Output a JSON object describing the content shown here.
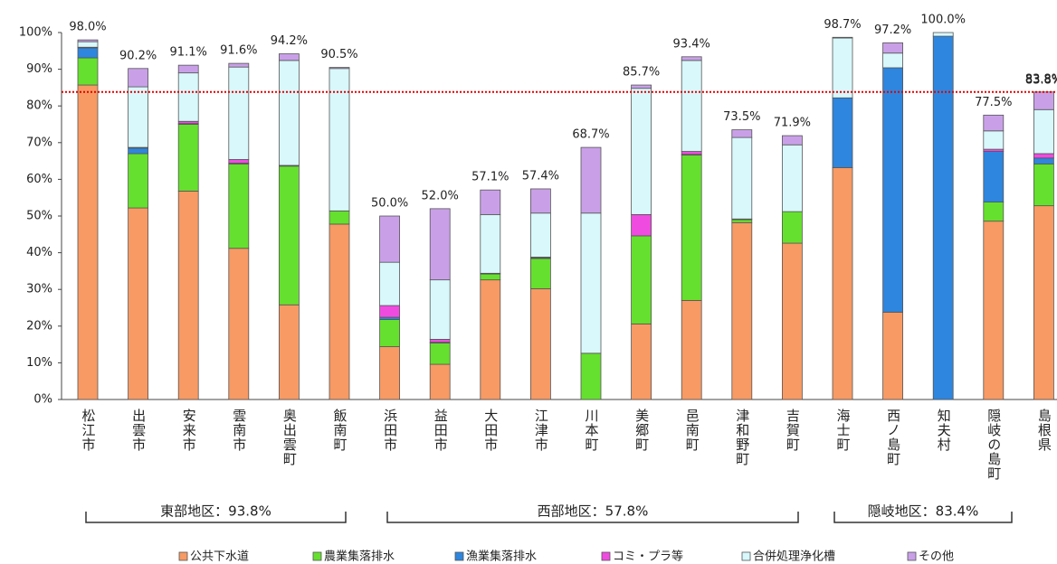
{
  "chart_data": {
    "type": "stacked_bar",
    "categories": [
      "松江市",
      "出雲市",
      "安来市",
      "雲南市",
      "奥出雲町",
      "飯南町",
      "浜田市",
      "益田市",
      "大田市",
      "江津市",
      "川本町",
      "美郷町",
      "邑南町",
      "津和野町",
      "吉賀町",
      "海士町",
      "西ノ島町",
      "知夫村",
      "隠岐の島町",
      "島根県"
    ],
    "series": [
      {
        "name": "公共下水道",
        "color": "#f79a64",
        "values": [
          85.7,
          52.2,
          56.8,
          41.2,
          25.8,
          47.8,
          14.4,
          9.6,
          32.6,
          30.2,
          0,
          20.6,
          27.0,
          48.2,
          42.6,
          63.2,
          23.8,
          0,
          48.6,
          52.8
        ]
      },
      {
        "name": "農業集落排水",
        "color": "#66e02e",
        "values": [
          7.4,
          14.8,
          18.2,
          23.0,
          37.8,
          3.6,
          7.4,
          5.8,
          1.6,
          8.2,
          12.6,
          24.0,
          39.6,
          0.8,
          8.6,
          0,
          0,
          0,
          5.2,
          11.4
        ]
      },
      {
        "name": "漁業集落排水",
        "color": "#2e86de",
        "values": [
          2.7,
          1.5,
          0.2,
          0.2,
          0,
          0,
          0.6,
          0.2,
          0,
          0.2,
          0,
          0,
          0.2,
          0,
          0,
          19.0,
          66.6,
          99.0,
          13.8,
          1.6
        ]
      },
      {
        "name": "コミ・プラ等",
        "color": "#f04be0",
        "values": [
          0.2,
          0.2,
          0.6,
          1.0,
          0.2,
          0,
          3.2,
          0.8,
          0.2,
          0.2,
          0,
          5.8,
          0.8,
          0.2,
          0,
          0,
          0,
          0,
          0.6,
          1.2
        ]
      },
      {
        "name": "合併処理浄化槽",
        "color": "#d8f8fc",
        "values": [
          1.5,
          16.5,
          13.2,
          25.2,
          28.6,
          38.8,
          11.8,
          16.2,
          16.0,
          12.0,
          38.2,
          34.4,
          24.8,
          22.2,
          18.2,
          16.3,
          4.0,
          1.0,
          5.0,
          12.0
        ]
      },
      {
        "name": "その他",
        "color": "#c9a0e8",
        "values": [
          0.5,
          5.0,
          2.1,
          1.0,
          1.8,
          0.3,
          12.6,
          19.4,
          6.7,
          6.6,
          17.9,
          0.9,
          1.0,
          2.1,
          2.5,
          0.2,
          2.8,
          0,
          4.3,
          4.8
        ]
      }
    ],
    "totals": [
      98.0,
      90.2,
      91.1,
      91.6,
      94.2,
      90.5,
      50.0,
      52.0,
      57.1,
      57.4,
      68.7,
      85.7,
      93.4,
      73.5,
      71.9,
      98.7,
      97.2,
      100.0,
      77.5,
      83.8
    ],
    "total_labels": [
      "98.0%",
      "90.2%",
      "91.1%",
      "91.6%",
      "94.2%",
      "90.5%",
      "50.0%",
      "52.0%",
      "57.1%",
      "57.4%",
      "68.7%",
      "85.7%",
      "93.4%",
      "73.5%",
      "71.9%",
      "98.7%",
      "97.2%",
      "100.0%",
      "77.5%",
      "83.8%"
    ],
    "reference_line": {
      "value": 83.8,
      "label": "83.8%",
      "color": "#e00000"
    },
    "groups": [
      "東部地区：93.8%",
      "西部地区：57.8%",
      "隠岐地区：83.4%"
    ],
    "ylim": [
      0,
      100
    ],
    "yticks": [
      {
        "value": 0,
        "label": "0%"
      },
      {
        "value": 10,
        "label": "10%"
      },
      {
        "value": 20,
        "label": "20%"
      },
      {
        "value": 30,
        "label": "30%"
      },
      {
        "value": 40,
        "label": "40%"
      },
      {
        "value": 50,
        "label": "50%"
      },
      {
        "value": 60,
        "label": "60%"
      },
      {
        "value": 70,
        "label": "70%"
      },
      {
        "value": 80,
        "label": "80%"
      },
      {
        "value": 90,
        "label": "90%"
      },
      {
        "value": 100,
        "label": "100%"
      }
    ]
  }
}
